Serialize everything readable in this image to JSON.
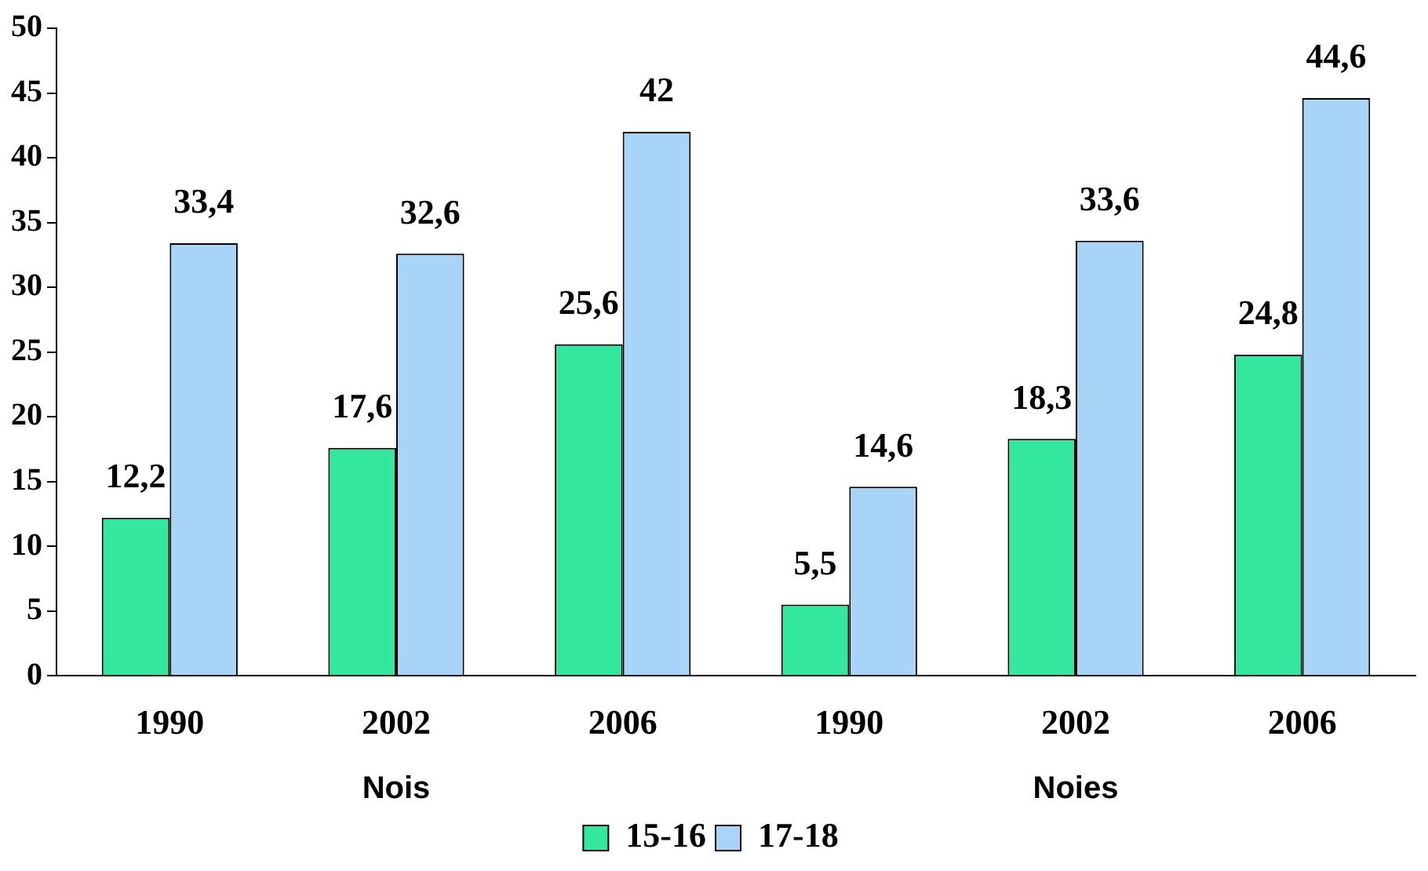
{
  "chart_data": {
    "type": "bar",
    "categories": [
      "1990",
      "2002",
      "2006",
      "1990",
      "2002",
      "2006"
    ],
    "series": [
      {
        "name": "15-16",
        "color": "#33e89e",
        "values": [
          12.2,
          17.6,
          25.6,
          5.5,
          18.3,
          24.8
        ],
        "value_labels": [
          "12,2",
          "17,6",
          "25,6",
          "5,5",
          "18,3",
          "24,8"
        ]
      },
      {
        "name": "17-18",
        "color": "#a8d4f8",
        "values": [
          33.4,
          32.6,
          42,
          14.6,
          33.6,
          44.6
        ],
        "value_labels": [
          "33,4",
          "32,6",
          "42",
          "14,6",
          "33,6",
          "44,6"
        ]
      }
    ],
    "ylim": [
      0,
      50
    ],
    "yticks": [
      0,
      5,
      10,
      15,
      20,
      25,
      30,
      35,
      40,
      45,
      50
    ],
    "grid": false,
    "legend": "bottom",
    "annotations": [
      "Nois",
      "Noies"
    ]
  }
}
